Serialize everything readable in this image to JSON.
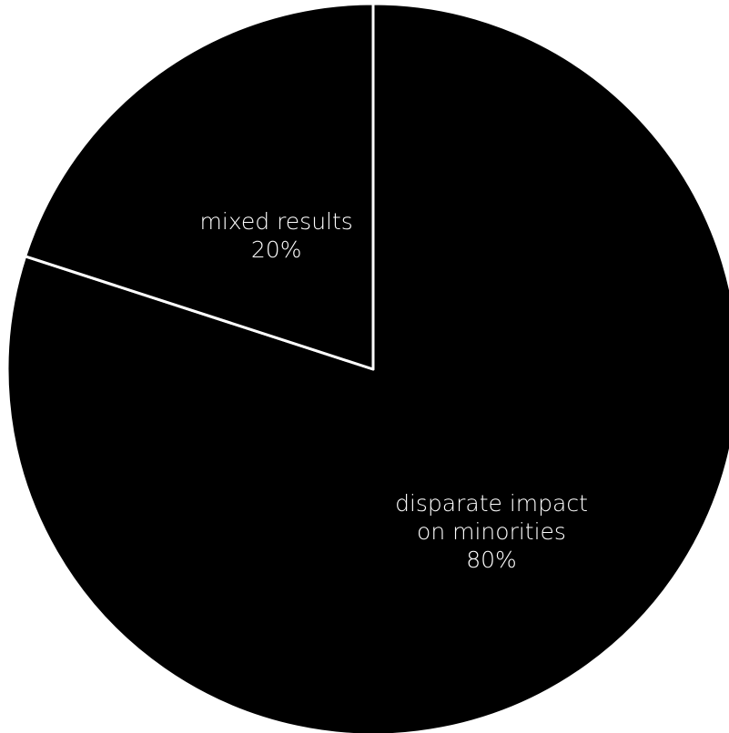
{
  "chart_data": {
    "type": "pie",
    "title": "",
    "slices": [
      {
        "label_lines": [
          "disparate impact",
          "on minorities"
        ],
        "value_label": "80%",
        "value": 80,
        "color": "#000000"
      },
      {
        "label_lines": [
          "mixed results"
        ],
        "value_label": "20%",
        "value": 20,
        "color": "#000000"
      }
    ],
    "start_angle_deg": 0,
    "direction": "clockwise",
    "slice_separator_color": "#ffffff",
    "label_color": "#ffffff",
    "legend": "none"
  }
}
